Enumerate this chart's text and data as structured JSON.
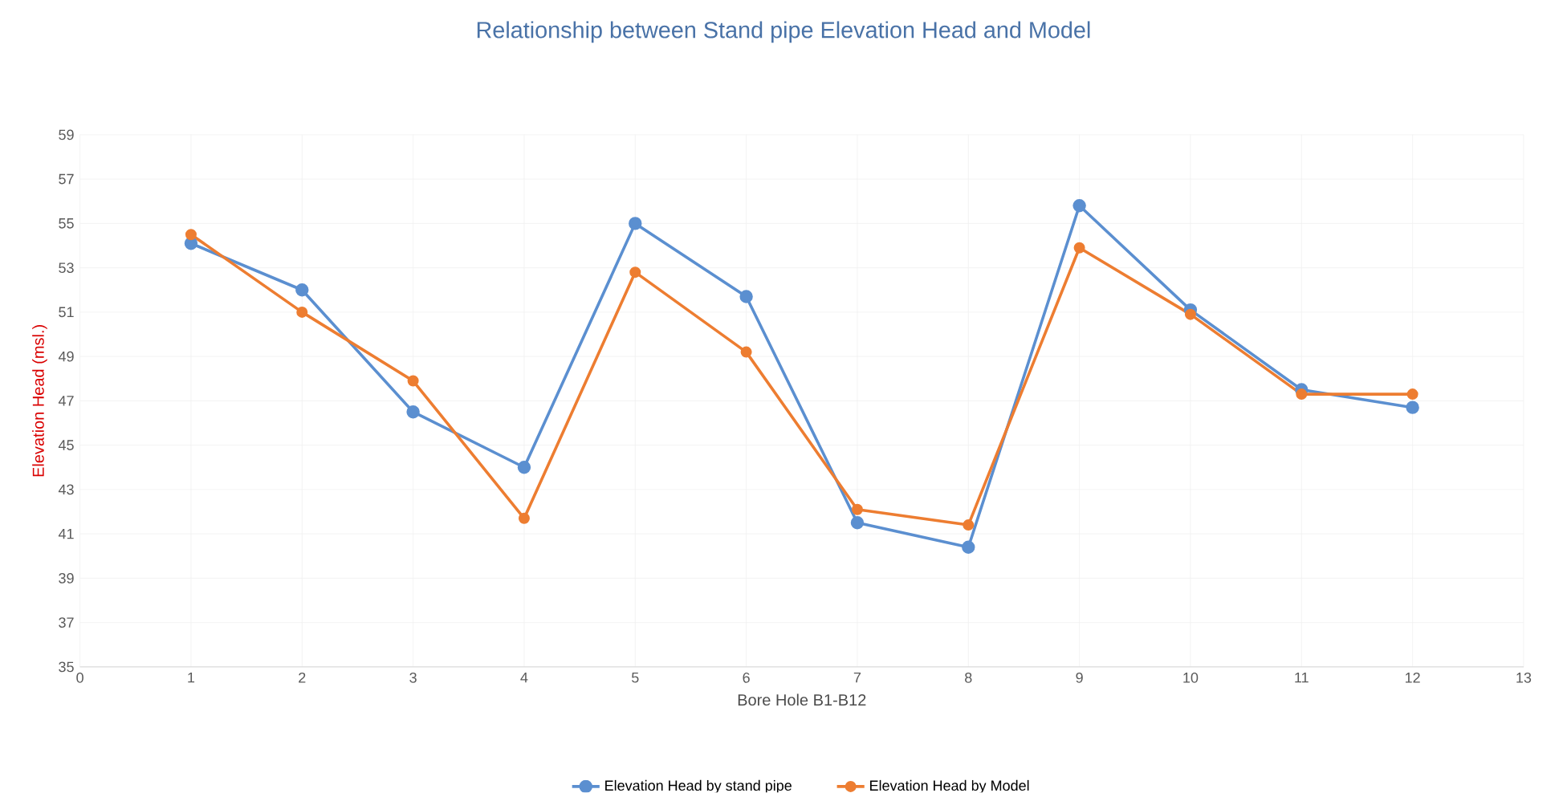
{
  "chart_data": {
    "type": "line",
    "title": "Relationship between Stand pipe Elevation Head and Model",
    "xlabel": "Bore Hole B1-B12",
    "ylabel": "Elevation Head (msl.)",
    "x": [
      1,
      2,
      3,
      4,
      5,
      6,
      7,
      8,
      9,
      10,
      11,
      12
    ],
    "series": [
      {
        "name": "Elevation Head by stand pipe",
        "color": "#5b8fd0",
        "values": [
          54.1,
          52.0,
          46.5,
          44.0,
          55.0,
          51.7,
          41.5,
          40.4,
          55.8,
          51.1,
          47.5,
          46.7
        ]
      },
      {
        "name": "Elevation Head by Model",
        "color": "#ed7d31",
        "values": [
          54.5,
          51.0,
          47.9,
          41.7,
          52.8,
          49.2,
          42.1,
          41.4,
          53.9,
          50.9,
          47.3,
          47.3
        ]
      }
    ],
    "xlim": [
      0,
      13
    ],
    "xticks": [
      0,
      1,
      2,
      3,
      4,
      5,
      6,
      7,
      8,
      9,
      10,
      11,
      12,
      13
    ],
    "ylim": [
      35,
      59
    ],
    "yticks": [
      35,
      37,
      39,
      41,
      43,
      45,
      47,
      49,
      51,
      53,
      55,
      57,
      59
    ],
    "grid": true,
    "legend": "bottom",
    "marker": "circle",
    "line_style": "solid"
  }
}
